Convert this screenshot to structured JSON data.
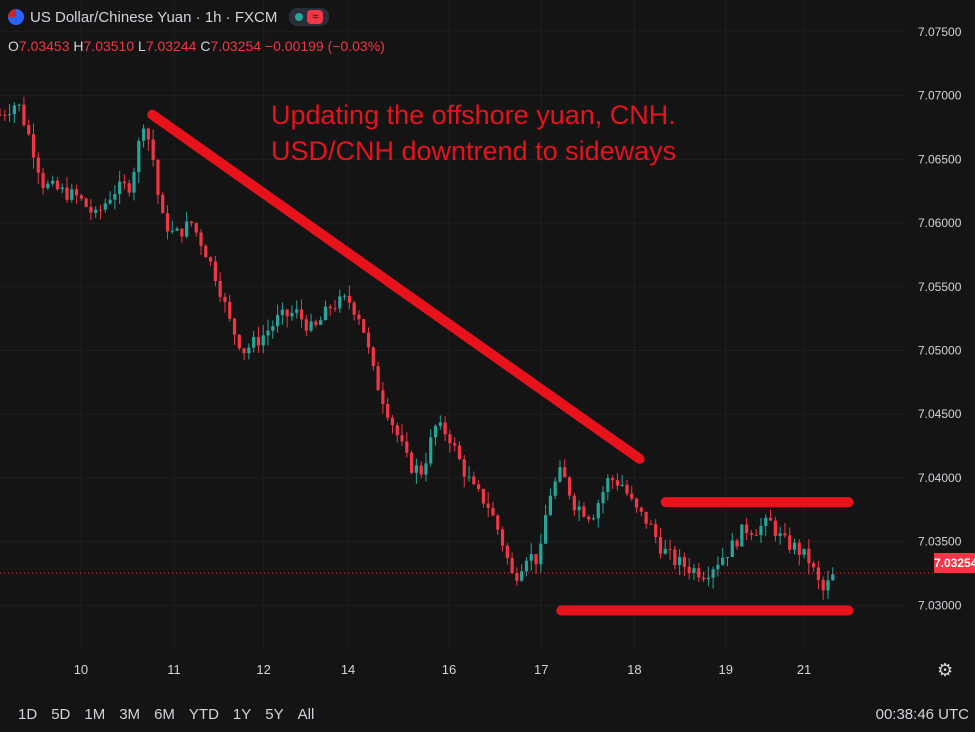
{
  "header": {
    "symbol_title": "US Dollar/Chinese Yuan · 1h · FXCM",
    "flag_icon": "us-flag-icon",
    "status_icon": "market-status-icon",
    "wave_icon": "indicator-wave-icon"
  },
  "ohlc": {
    "o_label": "O",
    "o_value": "7.03453",
    "h_label": "H",
    "h_value": "7.03510",
    "l_label": "L",
    "l_value": "7.03244",
    "c_label": "C",
    "c_value": "7.03254",
    "change": "−0.00199 (−0.03%)"
  },
  "annotation": {
    "line1": "Updating the offshore yuan, CNH.",
    "line2": "USD/CNH downtrend to sideways"
  },
  "last_price_label": "7.03254",
  "timeframes": [
    "1D",
    "5D",
    "1M",
    "3M",
    "6M",
    "YTD",
    "1Y",
    "5Y",
    "All"
  ],
  "clock": "00:38:46 UTC",
  "settings_icon": "settings-gear-icon",
  "colors": {
    "background": "#141414",
    "up": "#26a69a",
    "down": "#f23645",
    "annotation": "#e8121d",
    "axis_text": "#d1d4dc",
    "grid": "#1e1e1e"
  },
  "chart_data": {
    "type": "candlestick",
    "title": "US Dollar/Chinese Yuan · 1h · FXCM",
    "y_ticks": [
      "7.07500",
      "7.07000",
      "7.06500",
      "7.06000",
      "7.05500",
      "7.05000",
      "7.04500",
      "7.04000",
      "7.03500",
      "7.03000"
    ],
    "y_tick_values": [
      7.075,
      7.07,
      7.065,
      7.06,
      7.055,
      7.05,
      7.045,
      7.04,
      7.035,
      7.03
    ],
    "ylim": [
      7.0265,
      7.0775
    ],
    "x_tick_labels": [
      "10",
      "11",
      "12",
      "14",
      "16",
      "17",
      "18",
      "19",
      "21"
    ],
    "x_tick_positions": [
      9.3,
      20.0,
      30.3,
      40.0,
      51.6,
      62.2,
      72.9,
      83.4,
      92.4
    ],
    "x_range": [
      0,
      104
    ],
    "last_close": 7.03254,
    "grid": true,
    "close_path": [
      [
        0,
        7.0685
      ],
      [
        2,
        7.0695
      ],
      [
        3.5,
        7.0665
      ],
      [
        5,
        7.063
      ],
      [
        7,
        7.0625
      ],
      [
        9,
        7.062
      ],
      [
        11,
        7.0605
      ],
      [
        13,
        7.0625
      ],
      [
        15,
        7.063
      ],
      [
        16.5,
        7.068
      ],
      [
        17.5,
        7.0655
      ],
      [
        18.5,
        7.0605
      ],
      [
        20,
        7.059
      ],
      [
        22,
        7.06
      ],
      [
        23.5,
        7.058
      ],
      [
        25,
        7.0555
      ],
      [
        26.5,
        7.052
      ],
      [
        28,
        7.05
      ],
      [
        30,
        7.051
      ],
      [
        32,
        7.0525
      ],
      [
        34,
        7.053
      ],
      [
        36,
        7.0515
      ],
      [
        38,
        7.0535
      ],
      [
        40,
        7.054
      ],
      [
        41.5,
        7.0525
      ],
      [
        43,
        7.048
      ],
      [
        45,
        7.0445
      ],
      [
        47,
        7.041
      ],
      [
        48.5,
        7.0405
      ],
      [
        50,
        7.044
      ],
      [
        51.5,
        7.0435
      ],
      [
        53,
        7.041
      ],
      [
        54.5,
        7.039
      ],
      [
        56,
        7.038
      ],
      [
        57.5,
        7.0355
      ],
      [
        59,
        7.032
      ],
      [
        60.5,
        7.034
      ],
      [
        62,
        7.0335
      ],
      [
        63,
        7.0385
      ],
      [
        64.5,
        7.0405
      ],
      [
        66,
        7.038
      ],
      [
        68,
        7.037
      ],
      [
        70,
        7.04
      ],
      [
        71.5,
        7.0395
      ],
      [
        73,
        7.0375
      ],
      [
        74.5,
        7.0365
      ],
      [
        76,
        7.0345
      ],
      [
        77.5,
        7.0335
      ],
      [
        79,
        7.033
      ],
      [
        81,
        7.0325
      ],
      [
        82.5,
        7.0335
      ],
      [
        84,
        7.0345
      ],
      [
        85.5,
        7.036
      ],
      [
        87,
        7.036
      ],
      [
        88.5,
        7.0365
      ],
      [
        90,
        7.035
      ],
      [
        91.5,
        7.0345
      ],
      [
        93,
        7.0335
      ],
      [
        94.5,
        7.031
      ],
      [
        96,
        7.03254
      ]
    ],
    "annotations": [
      {
        "kind": "trendline",
        "from": [
          17.5,
          7.0685
        ],
        "to": [
          73.5,
          7.0415
        ]
      },
      {
        "kind": "level",
        "from": [
          76.5,
          7.0381
        ],
        "to": [
          97.5,
          7.0381
        ]
      },
      {
        "kind": "level",
        "from": [
          64.5,
          7.0296
        ],
        "to": [
          97.5,
          7.0296
        ]
      }
    ]
  }
}
